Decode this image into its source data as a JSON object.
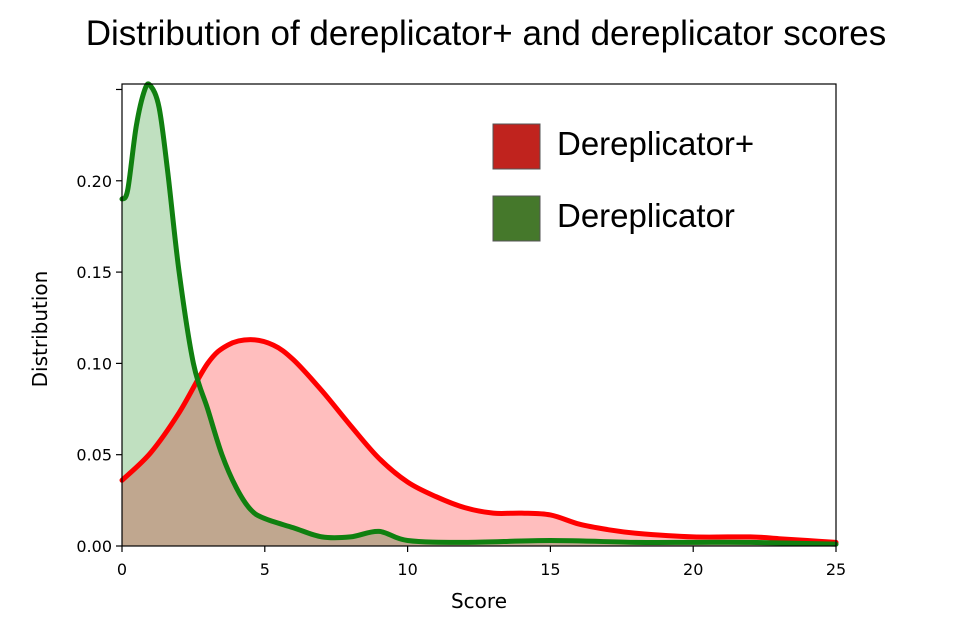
{
  "chart_data": {
    "type": "area",
    "title": "Distribution of dereplicator+ and dereplicator scores",
    "xlabel": "Score",
    "ylabel": "Distribution",
    "xlim": [
      0,
      25
    ],
    "ylim": [
      0,
      0.253
    ],
    "xticks": [
      0,
      5,
      10,
      15,
      20,
      25
    ],
    "yticks": [
      0.0,
      0.05,
      0.1,
      0.15,
      0.2
    ],
    "ytick_labels": [
      "0.00",
      "0.05",
      "0.10",
      "0.15",
      "0.20"
    ],
    "grid": false,
    "legend_position": "top-right",
    "series": [
      {
        "name": "Dereplicator+",
        "line_color": "#ff0000",
        "fill_color": "#ffb3b3",
        "legend_color": "#c0231e",
        "x": [
          0,
          1,
          2,
          3,
          3.7,
          4.5,
          5.3,
          6,
          7,
          8,
          9,
          10,
          11,
          12,
          13,
          14,
          15,
          16,
          17,
          18,
          20,
          22,
          23,
          24,
          25
        ],
        "y": [
          0.036,
          0.051,
          0.073,
          0.1,
          0.11,
          0.113,
          0.11,
          0.102,
          0.085,
          0.066,
          0.048,
          0.035,
          0.027,
          0.021,
          0.018,
          0.018,
          0.017,
          0.012,
          0.009,
          0.007,
          0.005,
          0.005,
          0.004,
          0.003,
          0.002
        ]
      },
      {
        "name": "Dereplicator",
        "line_color": "#108010",
        "fill_color": "#b5dbb5",
        "legend_color": "#45782b",
        "x": [
          0,
          0.2,
          0.5,
          0.8,
          1.0,
          1.3,
          1.6,
          2.0,
          2.5,
          3.0,
          3.5,
          4.0,
          4.5,
          5.0,
          6.0,
          7.0,
          8.0,
          9.0,
          10.0,
          12.0,
          15.0,
          18.0,
          20.0,
          22.0,
          25.0
        ],
        "y": [
          0.19,
          0.195,
          0.23,
          0.25,
          0.252,
          0.24,
          0.205,
          0.15,
          0.1,
          0.075,
          0.05,
          0.032,
          0.02,
          0.015,
          0.01,
          0.005,
          0.005,
          0.008,
          0.003,
          0.002,
          0.003,
          0.002,
          0.002,
          0.002,
          0.001
        ]
      }
    ]
  }
}
